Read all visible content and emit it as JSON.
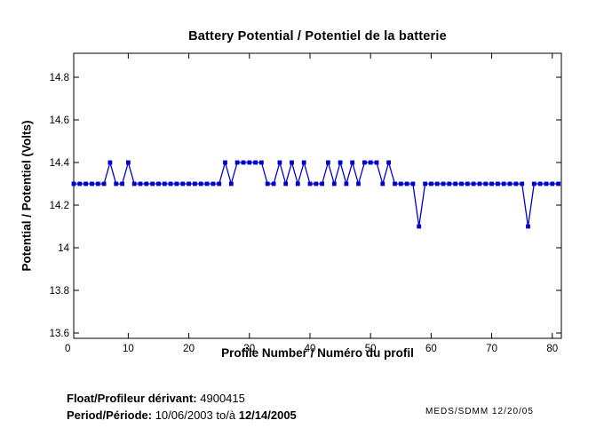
{
  "chart_data": {
    "type": "line",
    "title": "Battery Potential / Potentiel de la batterie",
    "xlabel": "Profile Number / Numéro du profil",
    "ylabel": "Potential / Potentiel (Volts)",
    "x_start": 1,
    "values": [
      14.3,
      14.3,
      14.3,
      14.3,
      14.3,
      14.3,
      14.4,
      14.3,
      14.3,
      14.4,
      14.3,
      14.3,
      14.3,
      14.3,
      14.3,
      14.3,
      14.3,
      14.3,
      14.3,
      14.3,
      14.3,
      14.3,
      14.3,
      14.3,
      14.3,
      14.4,
      14.3,
      14.4,
      14.4,
      14.4,
      14.4,
      14.4,
      14.3,
      14.3,
      14.4,
      14.3,
      14.4,
      14.3,
      14.4,
      14.3,
      14.3,
      14.3,
      14.4,
      14.3,
      14.4,
      14.3,
      14.4,
      14.3,
      14.4,
      14.4,
      14.4,
      14.3,
      14.4,
      14.3,
      14.3,
      14.3,
      14.3,
      14.1,
      14.3,
      14.3,
      14.3,
      14.3,
      14.3,
      14.3,
      14.3,
      14.3,
      14.3,
      14.3,
      14.3,
      14.3,
      14.3,
      14.3,
      14.3,
      14.3,
      14.3,
      14.1,
      14.3,
      14.3,
      14.3,
      14.3,
      14.3
    ],
    "xlim": [
      1,
      81.5
    ],
    "ylim": [
      13.575,
      14.9125
    ],
    "xticks": [
      0,
      10,
      20,
      30,
      40,
      50,
      60,
      70,
      80
    ],
    "yticks": [
      13.6,
      13.8,
      14,
      14.2,
      14.4,
      14.6,
      14.8
    ],
    "grid": false,
    "legend": null,
    "line_color": "#0000CC",
    "marker": "square"
  },
  "footer": {
    "float_label": "Float/Profileur dérivant:",
    "float_value": "4900415",
    "period_label": "Period/Période:",
    "period_start": "10/06/2003",
    "period_separator": "to/à",
    "period_end": "12/14/2005",
    "credit": "MEDS/SDMM  12/20/05"
  }
}
